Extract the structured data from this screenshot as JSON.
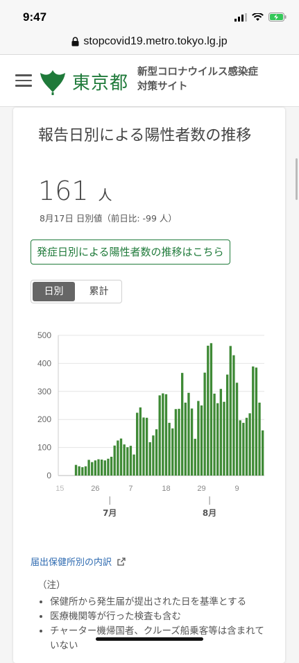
{
  "status_bar": {
    "time": "9:47"
  },
  "browser": {
    "url": "stopcovid19.metro.tokyo.lg.jp"
  },
  "header": {
    "logo_text": "東京都",
    "site_title_line1": "新型コロナウイルス感染症",
    "site_title_line2": "対策サイト"
  },
  "card": {
    "title": "報告日別による陽性者数の推移",
    "value": "161",
    "unit": "人",
    "sub": "8月17日 日別値（前日比: -99 人）",
    "onset_link": "発症日別による陽性者数の推移はこちら",
    "toggle": {
      "daily": "日別",
      "cumulative": "累計",
      "selected": "日別"
    }
  },
  "colors": {
    "brand_green": "#1f7a3a",
    "bar_green": "#3f8a36",
    "link_blue": "#2f6bb1"
  },
  "chart_data": {
    "type": "bar",
    "title": "",
    "xlabel": "",
    "ylabel": "",
    "ylim": [
      0,
      500
    ],
    "yticks": [
      0,
      100,
      200,
      300,
      400,
      500
    ],
    "x_tick_labels": [
      "15",
      "26",
      "7",
      "18",
      "29",
      "9"
    ],
    "x_tick_dates": [
      "2020-06-15",
      "2020-06-26",
      "2020-07-07",
      "2020-07-18",
      "2020-07-29",
      "2020-08-09"
    ],
    "month_labels": [
      {
        "label": "7月",
        "date": "2020-07-01"
      },
      {
        "label": "8月",
        "date": "2020-08-01"
      }
    ],
    "x_start": "2020-06-15",
    "x_end": "2020-08-17",
    "bar_dates": [
      "2020-06-20",
      "2020-06-21",
      "2020-06-22",
      "2020-06-23",
      "2020-06-24",
      "2020-06-25",
      "2020-06-26",
      "2020-06-27",
      "2020-06-28",
      "2020-06-29",
      "2020-06-30",
      "2020-07-01",
      "2020-07-02",
      "2020-07-03",
      "2020-07-04",
      "2020-07-05",
      "2020-07-06",
      "2020-07-07",
      "2020-07-08",
      "2020-07-09",
      "2020-07-10",
      "2020-07-11",
      "2020-07-12",
      "2020-07-13",
      "2020-07-14",
      "2020-07-15",
      "2020-07-16",
      "2020-07-17",
      "2020-07-18",
      "2020-07-19",
      "2020-07-20",
      "2020-07-21",
      "2020-07-22",
      "2020-07-23",
      "2020-07-24",
      "2020-07-25",
      "2020-07-26",
      "2020-07-27",
      "2020-07-28",
      "2020-07-29",
      "2020-07-30",
      "2020-07-31",
      "2020-08-01",
      "2020-08-02",
      "2020-08-03",
      "2020-08-04",
      "2020-08-05",
      "2020-08-06",
      "2020-08-07",
      "2020-08-08",
      "2020-08-09",
      "2020-08-10",
      "2020-08-11",
      "2020-08-12",
      "2020-08-13",
      "2020-08-14",
      "2020-08-15",
      "2020-08-16",
      "2020-08-17"
    ],
    "values": [
      38,
      33,
      30,
      33,
      56,
      48,
      54,
      58,
      57,
      54,
      60,
      67,
      107,
      125,
      132,
      111,
      101,
      106,
      75,
      224,
      243,
      207,
      206,
      119,
      143,
      165,
      286,
      293,
      290,
      188,
      168,
      237,
      238,
      366,
      260,
      295,
      239,
      131,
      266,
      250,
      367,
      463,
      472,
      292,
      258,
      309,
      263,
      360,
      462,
      429,
      331,
      197,
      188,
      206,
      222,
      389,
      385,
      260,
      161
    ]
  },
  "notes": {
    "link": "届出保健所別の内訳",
    "heading": "（注）",
    "items": [
      "保健所から発生届が提出された日を基準とする",
      "医療機関等が行った検査も含む",
      "チャーター機帰国者、クルーズ船乗客等は含まれていない"
    ]
  }
}
